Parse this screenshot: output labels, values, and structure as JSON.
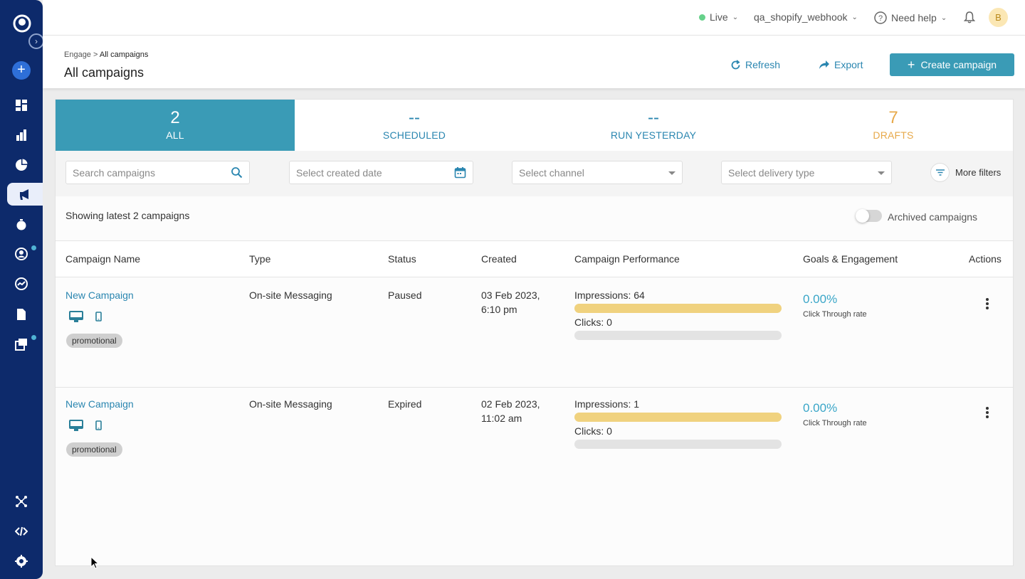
{
  "topbar": {
    "env_label": "Live",
    "account_label": "qa_shopify_webhook",
    "help_label": "Need help",
    "avatar_initial": "B"
  },
  "header": {
    "breadcrumb_parent": "Engage >",
    "breadcrumb_current": "All campaigns",
    "title": "All campaigns",
    "refresh_label": "Refresh",
    "export_label": "Export",
    "create_label": "Create campaign"
  },
  "stats": [
    {
      "value": "2",
      "label": "ALL"
    },
    {
      "value": "--",
      "label": "SCHEDULED"
    },
    {
      "value": "--",
      "label": "RUN YESTERDAY"
    },
    {
      "value": "7",
      "label": "DRAFTS"
    }
  ],
  "filters": {
    "search_placeholder": "Search campaigns",
    "date_placeholder": "Select created date",
    "channel_placeholder": "Select channel",
    "delivery_placeholder": "Select delivery type",
    "more_filters_label": "More filters"
  },
  "list": {
    "showing_text": "Showing latest 2 campaigns",
    "archived_label": "Archived campaigns",
    "archived_on": false
  },
  "table": {
    "headers": [
      "Campaign Name",
      "Type",
      "Status",
      "Created",
      "Campaign Performance",
      "Goals & Engagement",
      "Actions"
    ],
    "rows": [
      {
        "name": "New Campaign",
        "tag": "promotional",
        "type": "On-site Messaging",
        "status": "Paused",
        "created_date": "03 Feb 2023,",
        "created_time": "6:10 pm",
        "impressions": "Impressions: 64",
        "clicks": "Clicks: 0",
        "ctr": "0.00%",
        "ctr_label": "Click Through rate"
      },
      {
        "name": "New Campaign",
        "tag": "promotional",
        "type": "On-site Messaging",
        "status": "Expired",
        "created_date": "02 Feb 2023,",
        "created_time": "11:02 am",
        "impressions": "Impressions: 1",
        "clicks": "Clicks: 0",
        "ctr": "0.00%",
        "ctr_label": "Click Through rate"
      }
    ]
  },
  "colors": {
    "sidebar": "#0d2a6b",
    "accent": "#3a9bb6",
    "link": "#2a86b0",
    "drafts": "#e7a94a",
    "impressions_bar": "#f0d27f"
  }
}
